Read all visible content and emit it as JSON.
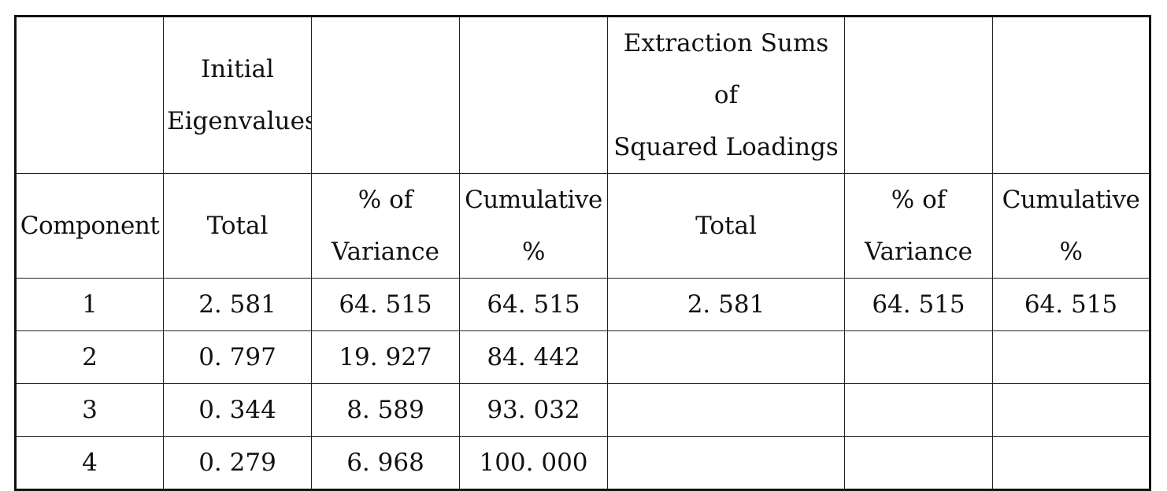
{
  "table": {
    "group_headers": [
      "",
      "Initial\nEigenvalues",
      "",
      "",
      "Extraction Sums of\nSquared Loadings",
      "",
      ""
    ],
    "column_headers": [
      "Component",
      "Total",
      "% of\nVariance",
      "Cumulative\n%",
      "Total",
      "% of\nVariance",
      "Cumulative\n%"
    ],
    "rows": [
      [
        "1",
        "2. 581",
        "64. 515",
        "64. 515",
        "2. 581",
        "64. 515",
        "64. 515"
      ],
      [
        "2",
        "0. 797",
        "19. 927",
        "84. 442",
        "",
        "",
        ""
      ],
      [
        "3",
        "0. 344",
        "8. 589",
        "93. 032",
        "",
        "",
        ""
      ],
      [
        "4",
        "0. 279",
        "6. 968",
        "100. 000",
        "",
        "",
        ""
      ]
    ]
  }
}
